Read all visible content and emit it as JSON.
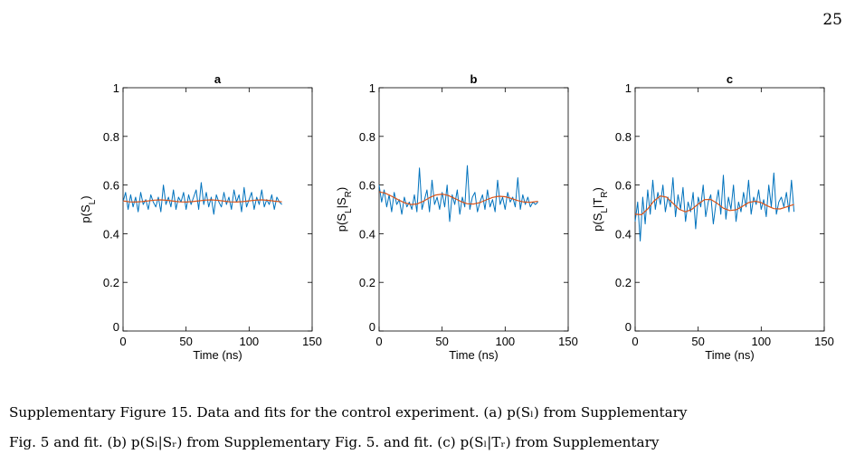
{
  "page_number": "25",
  "caption": {
    "line1": "Supplementary Figure 15.   Data and fits for the control experiment. (a) p(Sₗ) from Supplementary",
    "line2": "Fig. 5 and fit. (b) p(Sₗ|Sᵣ) from Supplementary Fig. 5. and fit. (c) p(Sₗ|Tᵣ) from Supplementary"
  },
  "colors": {
    "data": "#0072bd",
    "fit": "#d95319"
  },
  "chart_data": [
    {
      "type": "line",
      "title": "a",
      "xlabel": "Time (ns)",
      "ylabel": "p(S_L)",
      "xlim": [
        0,
        150
      ],
      "ylim": [
        0,
        1
      ],
      "xticks": [
        0,
        50,
        100,
        150
      ],
      "yticks": [
        0,
        0.2,
        0.4,
        0.6,
        0.8,
        1
      ],
      "series": [
        {
          "x": [
            0,
            2,
            4,
            6,
            8,
            10,
            12,
            14,
            16,
            18,
            20,
            22,
            24,
            26,
            28,
            30,
            32,
            34,
            36,
            38,
            40,
            42,
            44,
            46,
            48,
            50,
            52,
            54,
            56,
            58,
            60,
            62,
            64,
            66,
            68,
            70,
            72,
            74,
            76,
            78,
            80,
            82,
            84,
            86,
            88,
            90,
            92,
            94,
            96,
            98,
            100,
            102,
            104,
            106,
            108,
            110,
            112,
            114,
            116,
            118,
            120,
            122,
            124,
            126
          ],
          "y": [
            0.53,
            0.57,
            0.5,
            0.56,
            0.51,
            0.55,
            0.49,
            0.57,
            0.52,
            0.54,
            0.5,
            0.56,
            0.53,
            0.51,
            0.55,
            0.49,
            0.6,
            0.52,
            0.55,
            0.51,
            0.58,
            0.5,
            0.55,
            0.53,
            0.57,
            0.5,
            0.56,
            0.52,
            0.55,
            0.58,
            0.5,
            0.61,
            0.52,
            0.57,
            0.51,
            0.55,
            0.48,
            0.56,
            0.53,
            0.51,
            0.57,
            0.52,
            0.55,
            0.5,
            0.58,
            0.53,
            0.56,
            0.49,
            0.59,
            0.51,
            0.54,
            0.57,
            0.5,
            0.55,
            0.52,
            0.58,
            0.51,
            0.54,
            0.52,
            0.56,
            0.5,
            0.55,
            0.53,
            0.52
          ]
        },
        {
          "x": [
            0,
            5,
            10,
            15,
            20,
            25,
            30,
            35,
            40,
            45,
            50,
            55,
            60,
            65,
            70,
            75,
            80,
            85,
            90,
            95,
            100,
            105,
            110,
            115,
            120,
            126
          ],
          "y": [
            0.535,
            0.531,
            0.53,
            0.532,
            0.535,
            0.538,
            0.539,
            0.537,
            0.534,
            0.531,
            0.53,
            0.532,
            0.535,
            0.538,
            0.539,
            0.537,
            0.534,
            0.531,
            0.53,
            0.532,
            0.535,
            0.538,
            0.539,
            0.537,
            0.534,
            0.531
          ]
        }
      ]
    },
    {
      "type": "line",
      "title": "b",
      "xlabel": "Time (ns)",
      "ylabel": "p(S_L|S_R)",
      "xlim": [
        0,
        150
      ],
      "ylim": [
        0,
        1
      ],
      "xticks": [
        0,
        50,
        100,
        150
      ],
      "yticks": [
        0,
        0.2,
        0.4,
        0.6,
        0.8,
        1
      ],
      "series": [
        {
          "x": [
            0,
            2,
            4,
            6,
            8,
            10,
            12,
            14,
            16,
            18,
            20,
            22,
            24,
            26,
            28,
            30,
            32,
            34,
            36,
            38,
            40,
            42,
            44,
            46,
            48,
            50,
            52,
            54,
            56,
            58,
            60,
            62,
            64,
            66,
            68,
            70,
            72,
            74,
            76,
            78,
            80,
            82,
            84,
            86,
            88,
            90,
            92,
            94,
            96,
            98,
            100,
            102,
            104,
            106,
            108,
            110,
            112,
            114,
            116,
            118,
            120,
            122,
            124,
            126
          ],
          "y": [
            0.6,
            0.53,
            0.58,
            0.51,
            0.56,
            0.49,
            0.57,
            0.52,
            0.54,
            0.48,
            0.55,
            0.51,
            0.53,
            0.5,
            0.56,
            0.49,
            0.67,
            0.5,
            0.54,
            0.58,
            0.49,
            0.62,
            0.52,
            0.55,
            0.5,
            0.57,
            0.51,
            0.6,
            0.45,
            0.56,
            0.52,
            0.58,
            0.48,
            0.55,
            0.51,
            0.68,
            0.5,
            0.55,
            0.57,
            0.49,
            0.53,
            0.56,
            0.5,
            0.58,
            0.51,
            0.54,
            0.49,
            0.62,
            0.52,
            0.55,
            0.5,
            0.57,
            0.53,
            0.55,
            0.51,
            0.63,
            0.5,
            0.56,
            0.52,
            0.55,
            0.51,
            0.53,
            0.52,
            0.53
          ]
        },
        {
          "x": [
            0,
            5,
            10,
            15,
            20,
            25,
            30,
            35,
            40,
            45,
            50,
            55,
            60,
            65,
            70,
            75,
            80,
            85,
            90,
            95,
            100,
            105,
            110,
            115,
            120,
            126
          ],
          "y": [
            0.572,
            0.566,
            0.554,
            0.54,
            0.527,
            0.52,
            0.522,
            0.533,
            0.548,
            0.559,
            0.563,
            0.557,
            0.545,
            0.532,
            0.523,
            0.522,
            0.528,
            0.539,
            0.549,
            0.554,
            0.552,
            0.545,
            0.536,
            0.53,
            0.529,
            0.533
          ]
        }
      ]
    },
    {
      "type": "line",
      "title": "c",
      "xlabel": "Time (ns)",
      "ylabel": "p(S_L|T_R)",
      "xlim": [
        0,
        150
      ],
      "ylim": [
        0,
        1
      ],
      "xticks": [
        0,
        50,
        100,
        150
      ],
      "yticks": [
        0,
        0.2,
        0.4,
        0.6,
        0.8,
        1
      ],
      "series": [
        {
          "x": [
            0,
            2,
            4,
            6,
            8,
            10,
            12,
            14,
            16,
            18,
            20,
            22,
            24,
            26,
            28,
            30,
            32,
            34,
            36,
            38,
            40,
            42,
            44,
            46,
            48,
            50,
            52,
            54,
            56,
            58,
            60,
            62,
            64,
            66,
            68,
            70,
            72,
            74,
            76,
            78,
            80,
            82,
            84,
            86,
            88,
            90,
            92,
            94,
            96,
            98,
            100,
            102,
            104,
            106,
            108,
            110,
            112,
            114,
            116,
            118,
            120,
            122,
            124,
            126
          ],
          "y": [
            0.45,
            0.53,
            0.37,
            0.55,
            0.44,
            0.58,
            0.48,
            0.62,
            0.5,
            0.57,
            0.52,
            0.6,
            0.49,
            0.55,
            0.51,
            0.63,
            0.47,
            0.56,
            0.5,
            0.59,
            0.45,
            0.53,
            0.49,
            0.57,
            0.42,
            0.55,
            0.51,
            0.6,
            0.47,
            0.53,
            0.56,
            0.44,
            0.52,
            0.58,
            0.48,
            0.64,
            0.46,
            0.55,
            0.5,
            0.6,
            0.45,
            0.53,
            0.49,
            0.57,
            0.51,
            0.62,
            0.48,
            0.55,
            0.52,
            0.58,
            0.5,
            0.54,
            0.47,
            0.6,
            0.51,
            0.65,
            0.48,
            0.53,
            0.55,
            0.51,
            0.57,
            0.49,
            0.62,
            0.49
          ]
        },
        {
          "x": [
            0,
            5,
            10,
            15,
            20,
            25,
            30,
            35,
            40,
            45,
            50,
            55,
            60,
            65,
            70,
            75,
            80,
            85,
            90,
            95,
            100,
            105,
            110,
            115,
            120,
            126
          ],
          "y": [
            0.48,
            0.478,
            0.502,
            0.535,
            0.555,
            0.55,
            0.525,
            0.5,
            0.49,
            0.5,
            0.522,
            0.54,
            0.541,
            0.525,
            0.505,
            0.495,
            0.498,
            0.512,
            0.528,
            0.534,
            0.528,
            0.514,
            0.503,
            0.502,
            0.51,
            0.52
          ]
        }
      ]
    }
  ]
}
